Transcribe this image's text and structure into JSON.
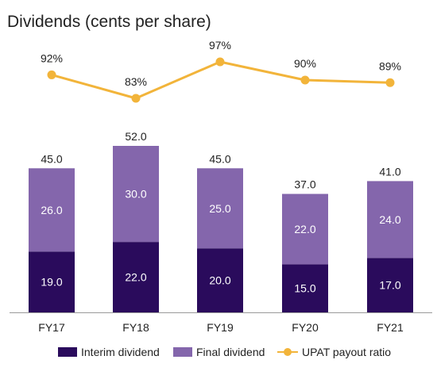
{
  "chart_data": {
    "type": "bar",
    "stacked": true,
    "title": "Dividends (cents per share)",
    "categories": [
      "FY17",
      "FY18",
      "FY19",
      "FY20",
      "FY21"
    ],
    "series": [
      {
        "name": "Interim dividend",
        "values": [
          19.0,
          22.0,
          20.0,
          15.0,
          17.0
        ],
        "color": "#2a0b5c",
        "label_color": "#ffffff"
      },
      {
        "name": "Final dividend",
        "values": [
          26.0,
          30.0,
          25.0,
          22.0,
          24.0
        ],
        "color": "#8466ac",
        "label_color": "#ffffff"
      }
    ],
    "totals": [
      "45.0",
      "52.0",
      "45.0",
      "37.0",
      "41.0"
    ],
    "segment_labels": [
      [
        "19.0",
        "22.0",
        "20.0",
        "15.0",
        "17.0"
      ],
      [
        "26.0",
        "30.0",
        "25.0",
        "22.0",
        "24.0"
      ]
    ],
    "line_series": {
      "name": "UPAT payout ratio",
      "values": [
        92,
        83,
        97,
        90,
        89
      ],
      "labels": [
        "92%",
        "83%",
        "97%",
        "90%",
        "89%"
      ],
      "color": "#f2b43a"
    },
    "ylim": [
      0,
      52
    ],
    "line_ylim": [
      83,
      97
    ],
    "grid": false,
    "legend_position": "bottom"
  }
}
